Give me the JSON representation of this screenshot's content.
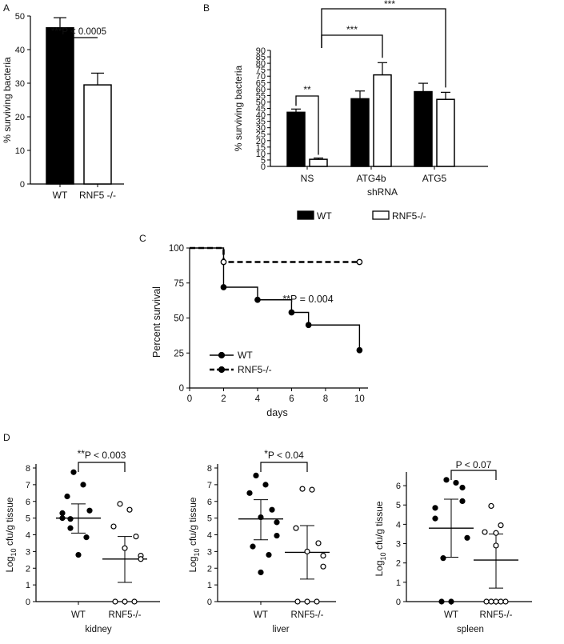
{
  "chart_data": [
    {
      "panel": "A",
      "type": "bar",
      "categories": [
        "WT",
        "RNF5 -/-"
      ],
      "values": [
        46.5,
        29.5
      ],
      "errors": [
        3.0,
        3.5
      ],
      "colors": [
        "#000000",
        "#ffffff"
      ],
      "ylabel": "% surviving bacteria",
      "ylim": [
        0,
        50
      ],
      "yticks": [
        "0",
        "10",
        "20",
        "30",
        "40",
        "50"
      ],
      "annotation": "***P < 0.0005"
    },
    {
      "panel": "B",
      "type": "bar",
      "categories": [
        "NS",
        "ATG4b",
        "ATG5"
      ],
      "xlabel": "shRNA",
      "ylabel": "% surviving bacteria",
      "ylim": [
        0,
        90
      ],
      "yticks": [
        "0",
        "5",
        "10",
        "15",
        "20",
        "25",
        "30",
        "35",
        "40",
        "45",
        "50",
        "55",
        "60",
        "65",
        "70",
        "75",
        "80",
        "85",
        "90"
      ],
      "series": [
        {
          "name": "WT",
          "values": [
            42,
            52.5,
            58
          ],
          "errors": [
            2.5,
            6,
            6.5
          ],
          "color": "#000000"
        },
        {
          "name": "RNF5-/-",
          "values": [
            5.5,
            71,
            52
          ],
          "errors": [
            1,
            9.5,
            5.5
          ],
          "color": "#ffffff"
        }
      ],
      "significance": [
        "**",
        "***",
        "***"
      ]
    },
    {
      "panel": "C",
      "type": "line",
      "xlabel": "days",
      "ylabel": "Percent survival",
      "xlim": [
        0,
        10.5
      ],
      "ylim": [
        0,
        100
      ],
      "xticks": [
        "0",
        "2",
        "4",
        "6",
        "8",
        "10"
      ],
      "yticks": [
        "0",
        "25",
        "50",
        "75",
        "100"
      ],
      "series": [
        {
          "name": "WT",
          "x": [
            0,
            2,
            2,
            4,
            4,
            6,
            6,
            7,
            7,
            10,
            10
          ],
          "y": [
            100,
            100,
            72,
            72,
            63,
            63,
            54,
            54,
            45,
            45,
            27
          ],
          "markers": [
            [
              2,
              72
            ],
            [
              4,
              63
            ],
            [
              6,
              54
            ],
            [
              7,
              45
            ],
            [
              10,
              27
            ]
          ]
        },
        {
          "name": "RNF5-/-",
          "x": [
            0,
            2,
            2,
            10
          ],
          "y": [
            100,
            100,
            90,
            90
          ],
          "markers": [
            [
              2,
              90
            ],
            [
              10,
              90
            ]
          ]
        }
      ],
      "annotation": "**P = 0.004"
    },
    {
      "panel": "D",
      "type": "scatter",
      "panels": [
        {
          "tissue": "kidney",
          "ylabel_main": "Log",
          "ylabel_sub": "10",
          "ylabel_rest": " cfu/g tissue",
          "ylim": [
            0,
            8
          ],
          "yticks": [
            "0",
            "1",
            "2",
            "3",
            "4",
            "5",
            "6",
            "7",
            "8"
          ],
          "categories": [
            "WT",
            "RNF5-/-"
          ],
          "groups": [
            {
              "name": "WT",
              "values": [
                7.75,
                7.0,
                6.3,
                5.45,
                5.3,
                5.0,
                4.95,
                4.4,
                3.85,
                2.8
              ],
              "mean": 5.0,
              "sd_low": 4.1,
              "sd_high": 5.85
            },
            {
              "name": "RNF5-/-",
              "values": [
                5.85,
                5.5,
                4.5,
                3.9,
                3.2,
                2.75,
                2.55,
                0,
                0,
                0
              ],
              "mean": 2.55,
              "sd_low": 1.15,
              "sd_high": 3.9
            }
          ],
          "annotation_stars": "**",
          "annotation_text": "P < 0.003"
        },
        {
          "tissue": "liver",
          "ylabel_main": "Log",
          "ylabel_sub": "10",
          "ylabel_rest": " cfu/g tissue",
          "ylim": [
            0,
            8
          ],
          "yticks": [
            "0",
            "1",
            "2",
            "3",
            "4",
            "5",
            "6",
            "7",
            "8"
          ],
          "categories": [
            "WT",
            "RNF5-/-"
          ],
          "groups": [
            {
              "name": "WT",
              "values": [
                7.55,
                7.0,
                6.5,
                5.5,
                5.05,
                4.75,
                3.95,
                3.3,
                2.8,
                1.75
              ],
              "mean": 4.95,
              "sd_low": 3.7,
              "sd_high": 6.1
            },
            {
              "name": "RNF5-/-",
              "values": [
                6.75,
                6.7,
                4.4,
                3.5,
                3.0,
                2.75,
                2.1,
                0,
                0,
                0
              ],
              "mean": 2.95,
              "sd_low": 1.35,
              "sd_high": 4.55
            }
          ],
          "annotation_stars": "*",
          "annotation_text": "P < 0.04"
        },
        {
          "tissue": "spleen",
          "ylabel_main": "Log",
          "ylabel_sub": "10",
          "ylabel_rest": " cfu/g tissue",
          "ylim": [
            0,
            6.5
          ],
          "yticks": [
            "0",
            "1",
            "2",
            "3",
            "4",
            "5",
            "6"
          ],
          "categories": [
            "WT",
            "RNF5-/-"
          ],
          "groups": [
            {
              "name": "WT",
              "values": [
                6.3,
                6.15,
                5.9,
                5.2,
                4.85,
                4.3,
                3.3,
                2.25,
                0,
                0
              ],
              "mean": 3.8,
              "sd_low": 2.3,
              "sd_high": 5.3
            },
            {
              "name": "RNF5-/-",
              "values": [
                4.95,
                3.95,
                3.6,
                3.55,
                2.9,
                0,
                0,
                0,
                0,
                0
              ],
              "mean": 2.15,
              "sd_low": 0.7,
              "sd_high": 3.5
            }
          ],
          "annotation_stars": "",
          "annotation_text": "P < 0.07"
        }
      ]
    }
  ],
  "panel_labels": {
    "a": "A",
    "b": "B",
    "c": "C",
    "d": "D"
  },
  "legend_b": [
    {
      "name": "WT",
      "color": "#000000"
    },
    {
      "name": "RNF5-/-",
      "color": "#ffffff"
    }
  ]
}
